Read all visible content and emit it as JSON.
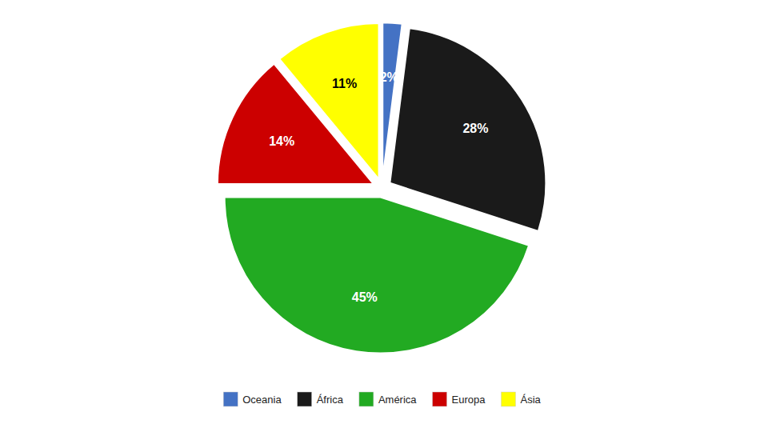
{
  "chart_data": {
    "type": "pie",
    "categories": [
      "Oceania",
      "África",
      "América",
      "Europa",
      "Ásia"
    ],
    "values": [
      2,
      28,
      45,
      14,
      11
    ],
    "value_labels": [
      "2%",
      "28%",
      "45%",
      "14%",
      "11%"
    ],
    "colors": [
      "#4472c4",
      "#1a1a1a",
      "#22aa22",
      "#cc0000",
      "#ffff00"
    ],
    "data_labels": true,
    "legend": "bottom"
  }
}
